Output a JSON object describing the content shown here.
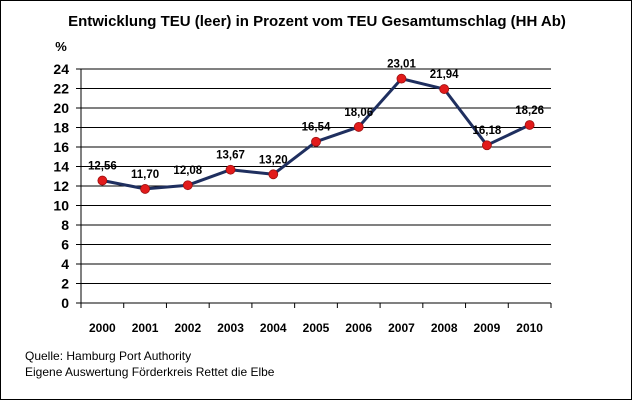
{
  "chart_data": {
    "type": "line",
    "title": "Entwicklung TEU (leer) in Prozent vom TEU Gesamtumschlag (HH Ab)",
    "ylabel": "%",
    "xlabel": "",
    "categories": [
      "2000",
      "2001",
      "2002",
      "2003",
      "2004",
      "2005",
      "2006",
      "2007",
      "2008",
      "2009",
      "2010"
    ],
    "series": [
      {
        "name": "",
        "values": [
          12.56,
          11.7,
          12.08,
          13.67,
          13.2,
          16.54,
          18.06,
          23.01,
          21.94,
          16.18,
          18.26
        ],
        "labels": [
          "12,56",
          "11,70",
          "12,08",
          "13,67",
          "13,20",
          "16,54",
          "18,06",
          "23,01",
          "21,94",
          "16,18",
          "18,26"
        ]
      }
    ],
    "yticks": [
      "0",
      "2",
      "4",
      "6",
      "8",
      "10",
      "12",
      "14",
      "16",
      "18",
      "20",
      "22",
      "24"
    ],
    "ylim": [
      0,
      24
    ],
    "grid": true,
    "legend": "none",
    "colors": {
      "line": "#1f2f5f",
      "marker": "#e21b1b",
      "grid": "#000000"
    }
  },
  "source": {
    "line1": "Quelle: Hamburg Port Authority",
    "line2": "Eigene Auswertung Förderkreis Rettet die Elbe"
  }
}
